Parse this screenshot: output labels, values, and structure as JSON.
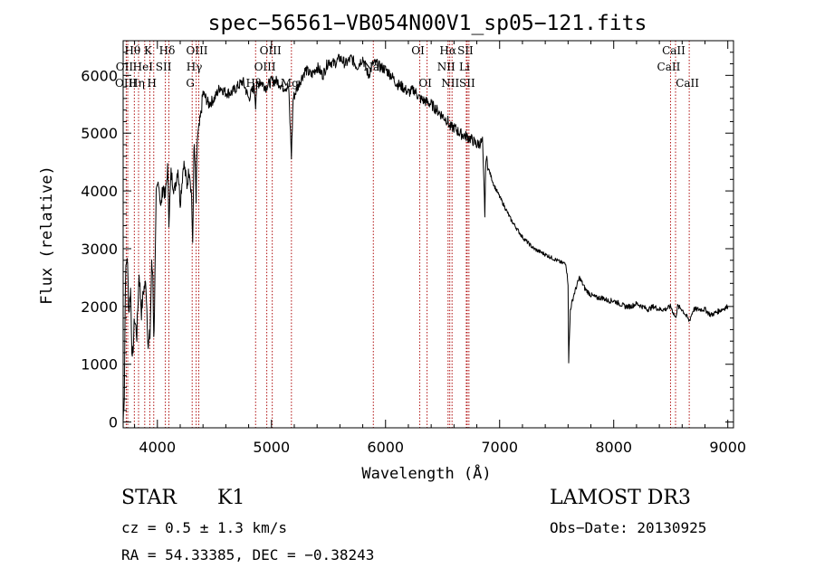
{
  "chart_data": {
    "type": "line",
    "title": "spec−56561−VB054N00V1_sp05−121.fits",
    "xlabel": "Wavelength (Å)",
    "ylabel": "Flux (relative)",
    "xlim": [
      3700,
      9050
    ],
    "ylim": [
      -100,
      6600
    ],
    "xticks": [
      4000,
      5000,
      6000,
      7000,
      8000,
      9000
    ],
    "yticks": [
      0,
      1000,
      2000,
      3000,
      4000,
      5000,
      6000
    ],
    "grid": false,
    "series": [
      {
        "name": "flux",
        "x": [
          3700,
          3710,
          3720,
          3735,
          3750,
          3765,
          3780,
          3800,
          3820,
          3840,
          3860,
          3880,
          3900,
          3920,
          3935,
          3950,
          3960,
          3968,
          3975,
          3990,
          4010,
          4030,
          4050,
          4070,
          4090,
          4101,
          4120,
          4150,
          4180,
          4200,
          4230,
          4260,
          4280,
          4300,
          4310,
          4320,
          4330,
          4340,
          4350,
          4360,
          4380,
          4400,
          4450,
          4500,
          4550,
          4600,
          4650,
          4700,
          4750,
          4800,
          4850,
          4861,
          4870,
          4900,
          4950,
          5000,
          5050,
          5100,
          5150,
          5175,
          5190,
          5210,
          5250,
          5300,
          5350,
          5400,
          5450,
          5500,
          5550,
          5600,
          5650,
          5700,
          5750,
          5800,
          5850,
          5890,
          5920,
          5950,
          6000,
          6050,
          6100,
          6150,
          6200,
          6250,
          6300,
          6350,
          6400,
          6450,
          6500,
          6550,
          6563,
          6600,
          6650,
          6700,
          6750,
          6800,
          6850,
          6870,
          6880,
          6900,
          6950,
          7000,
          7050,
          7100,
          7150,
          7200,
          7250,
          7300,
          7350,
          7400,
          7450,
          7500,
          7550,
          7580,
          7600,
          7605,
          7620,
          7650,
          7700,
          7750,
          7800,
          7850,
          7900,
          7950,
          8000,
          8050,
          8100,
          8150,
          8200,
          8250,
          8300,
          8350,
          8400,
          8450,
          8500,
          8542,
          8560,
          8600,
          8662,
          8700,
          8750,
          8800,
          8850,
          8900,
          8950,
          9000
        ],
        "values": [
          0,
          500,
          2500,
          2900,
          1900,
          2300,
          1000,
          1800,
          1500,
          2600,
          1900,
          2300,
          2400,
          1300,
          1500,
          2700,
          2600,
          1400,
          2000,
          3900,
          4200,
          3700,
          4100,
          3900,
          4400,
          3500,
          4300,
          4000,
          4400,
          3800,
          4500,
          4100,
          4400,
          3900,
          3000,
          4800,
          4500,
          3800,
          4900,
          5000,
          5300,
          5700,
          5500,
          5600,
          5800,
          5700,
          5700,
          5800,
          5900,
          5600,
          5800,
          5500,
          5800,
          5900,
          5800,
          5900,
          5900,
          5800,
          5800,
          4600,
          5600,
          5700,
          5900,
          6100,
          6000,
          6150,
          6000,
          6250,
          6200,
          6300,
          6200,
          6300,
          6150,
          6300,
          6000,
          6200,
          6200,
          6150,
          6100,
          6000,
          5850,
          5800,
          5700,
          5750,
          5600,
          5550,
          5500,
          5400,
          5300,
          5200,
          5100,
          5100,
          5000,
          4950,
          4900,
          4800,
          4850,
          3600,
          4600,
          4400,
          4100,
          3900,
          3700,
          3500,
          3350,
          3200,
          3100,
          3000,
          2950,
          2900,
          2850,
          2800,
          2750,
          2750,
          2400,
          1050,
          1950,
          2200,
          2500,
          2300,
          2200,
          2150,
          2150,
          2100,
          2100,
          2050,
          2000,
          2000,
          2050,
          2000,
          1950,
          2000,
          1950,
          1950,
          2000,
          1800,
          2000,
          1950,
          1750,
          1950,
          1950,
          1950,
          1850,
          1900,
          1950,
          2000
        ]
      }
    ],
    "lines": [
      {
        "name": "Hθ",
        "wl": 3798,
        "row": 0
      },
      {
        "name": "OII",
        "wl": 3727,
        "row": 1
      },
      {
        "name": "OIII",
        "wl": 3740,
        "row": 2
      },
      {
        "name": "Hη",
        "wl": 3835,
        "row": 2
      },
      {
        "name": "HeI",
        "wl": 3889,
        "row": 1
      },
      {
        "name": "K",
        "wl": 3934,
        "row": 0
      },
      {
        "name": "SII",
        "wl": 4070,
        "row": 1
      },
      {
        "name": "H",
        "wl": 3968,
        "row": 2
      },
      {
        "name": "Hδ",
        "wl": 4101,
        "row": 0
      },
      {
        "name": "OIII",
        "wl": 4363,
        "row": 0
      },
      {
        "name": "Hγ",
        "wl": 4340,
        "row": 1
      },
      {
        "name": "G",
        "wl": 4305,
        "row": 2
      },
      {
        "name": "Hβ",
        "wl": 4861,
        "row": 2
      },
      {
        "name": "OIII",
        "wl": 4959,
        "row": 1
      },
      {
        "name": "OIII",
        "wl": 5007,
        "row": 0
      },
      {
        "name": "Mg",
        "wl": 5175,
        "row": 2
      },
      {
        "name": "Na",
        "wl": 5893,
        "row": 1
      },
      {
        "name": "OI",
        "wl": 6300,
        "row": 0
      },
      {
        "name": "OI",
        "wl": 6364,
        "row": 2
      },
      {
        "name": "Hα",
        "wl": 6563,
        "row": 0
      },
      {
        "name": "NII",
        "wl": 6548,
        "row": 1
      },
      {
        "name": "NII",
        "wl": 6583,
        "row": 2
      },
      {
        "name": "SII",
        "wl": 6716,
        "row": 0
      },
      {
        "name": "Li",
        "wl": 6708,
        "row": 1
      },
      {
        "name": "SII",
        "wl": 6731,
        "row": 2
      },
      {
        "name": "CaII",
        "wl": 8542,
        "row": 0
      },
      {
        "name": "CaII",
        "wl": 8498,
        "row": 1
      },
      {
        "name": "CaII",
        "wl": 8662,
        "row": 2
      }
    ]
  },
  "info": {
    "object_class": "STAR",
    "subclass": "K1",
    "cz": "cz = 0.5 ± 1.3 km/s",
    "radec": "RA =  54.33385, DEC =  −0.38243",
    "survey": "LAMOST DR3",
    "obs_date": "Obs−Date: 20130925"
  },
  "colors": {
    "line": "#000000",
    "marker": "#b01010",
    "axis": "#000000"
  }
}
